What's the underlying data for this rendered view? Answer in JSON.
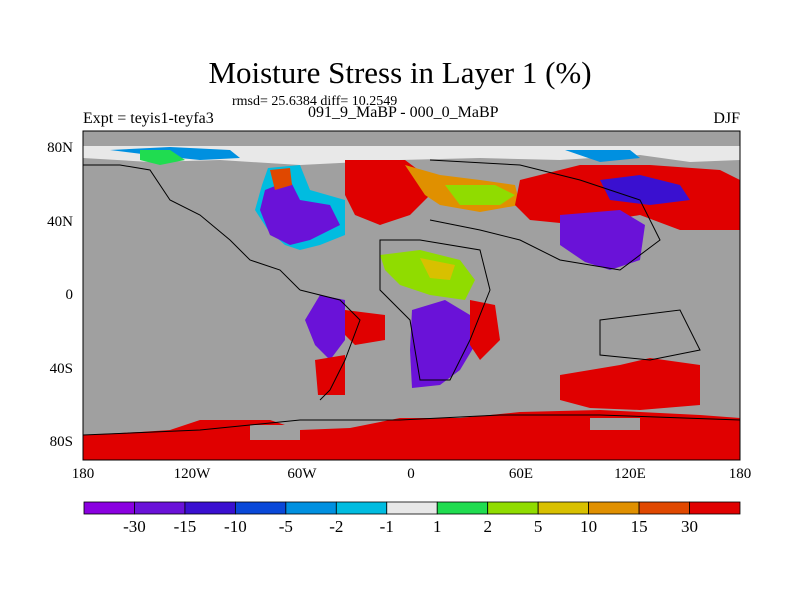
{
  "chart_data": {
    "type": "heatmap",
    "title": "Moisture Stress in Layer 1 (%)",
    "stats_label": "rmsd= 25.6384 diff= 10.2549",
    "left_string": "Expt = teyis1-teyfa3",
    "center_string": "091_9_MaBP - 000_0_MaBP",
    "right_string": "DJF",
    "x_ticks": [
      "180",
      "120W",
      "60W",
      "0",
      "60E",
      "120E",
      "180"
    ],
    "x_tick_values": [
      -180,
      -120,
      -60,
      0,
      60,
      120,
      180
    ],
    "y_ticks": [
      "80N",
      "40N",
      "0",
      "40S",
      "80S"
    ],
    "y_tick_values": [
      80,
      40,
      0,
      -40,
      -80
    ],
    "xlim": [
      -180,
      180
    ],
    "ylim": [
      -90,
      90
    ],
    "missing_color": "#a0a0a0",
    "colorbar": {
      "labels": [
        "-30",
        "-15",
        "-10",
        "-5",
        "-2",
        "-1",
        "1",
        "2",
        "5",
        "10",
        "15",
        "30"
      ],
      "colors": [
        "#8a00e0",
        "#6a12d8",
        "#3a10d0",
        "#0a48d8",
        "#0090e0",
        "#00bce0",
        "#e8e8e8",
        "#20dc50",
        "#90dc00",
        "#d8c000",
        "#e09000",
        "#e04800",
        "#e00000"
      ]
    }
  }
}
